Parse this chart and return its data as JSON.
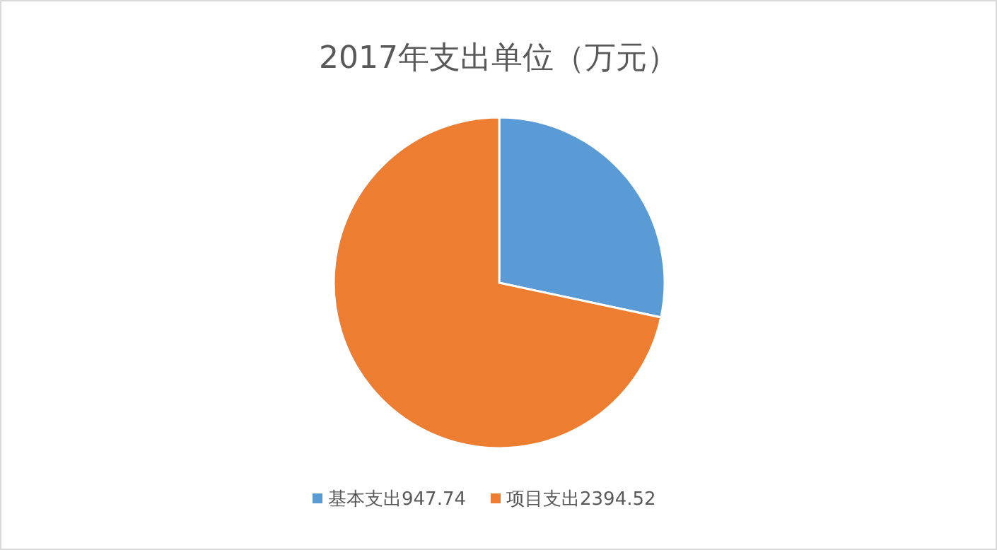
{
  "chart_data": {
    "type": "pie",
    "title": "2017年支出单位（万元）",
    "categories": [
      "基本支出947.74",
      "项目支出2394.52"
    ],
    "values": [
      947.74,
      2394.52
    ],
    "colors": [
      "#5b9bd5",
      "#ed7d31"
    ],
    "legend": "bottom"
  }
}
